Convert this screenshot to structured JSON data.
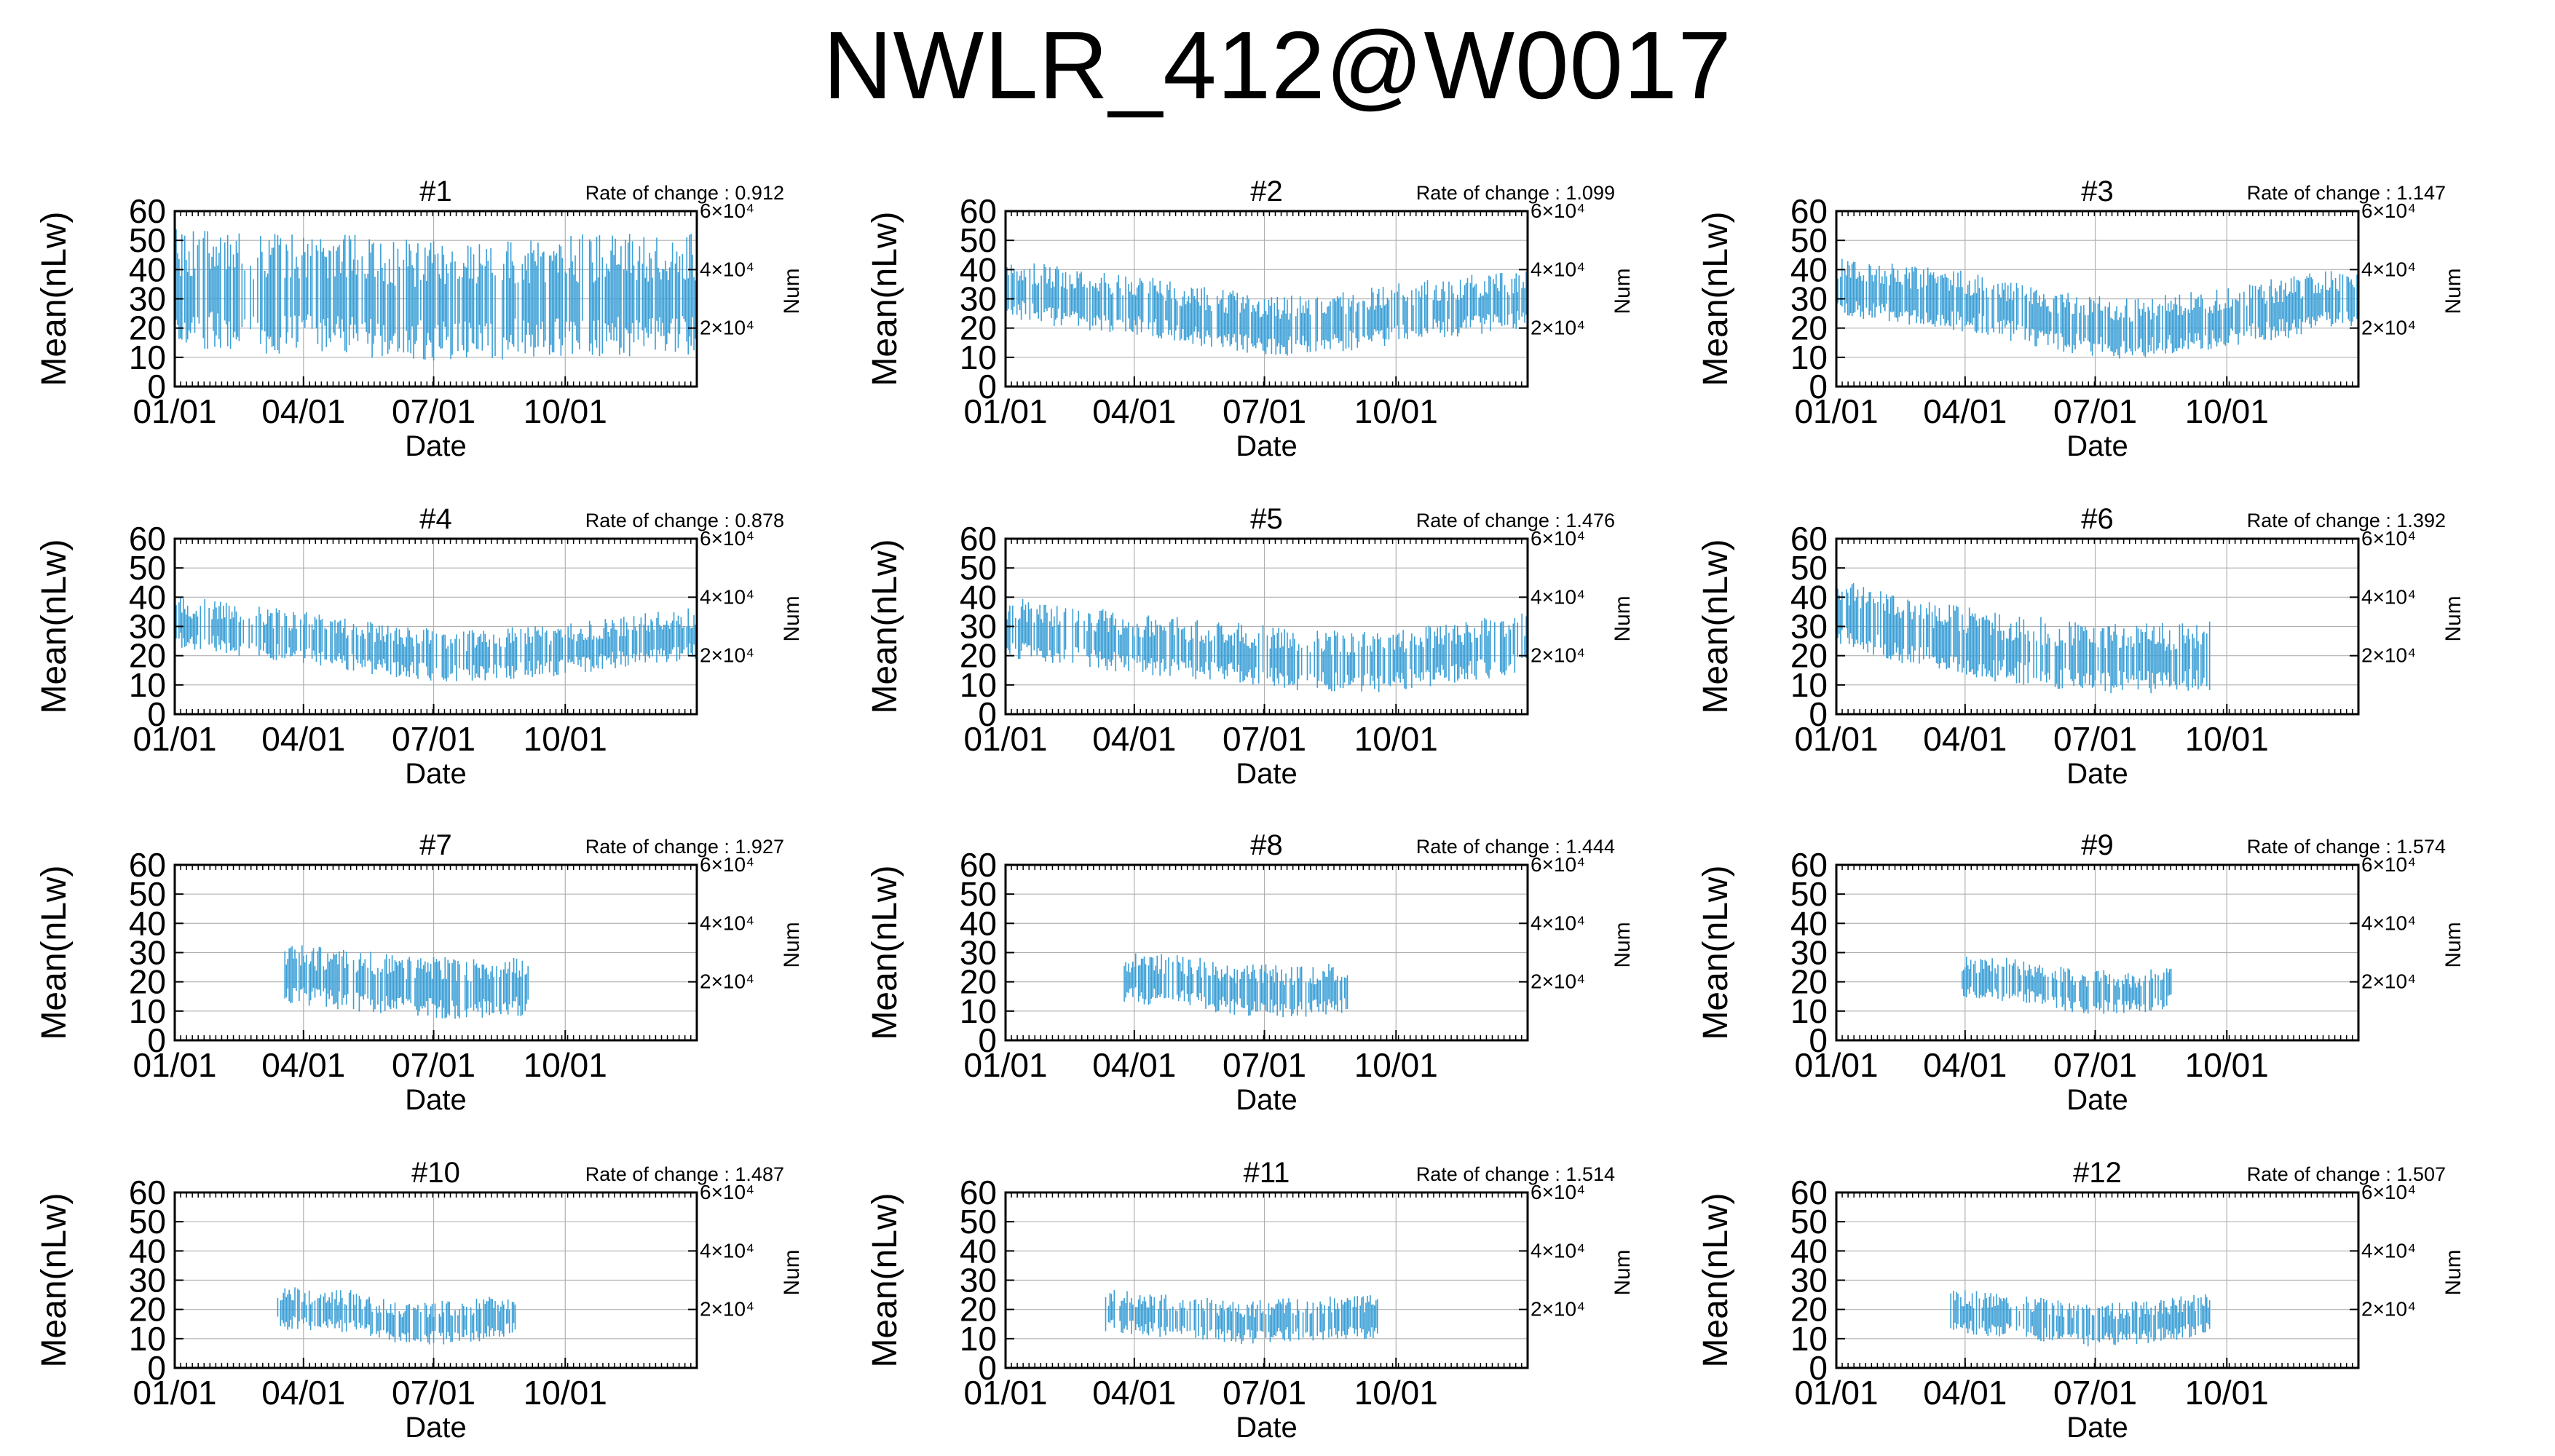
{
  "figure_title": "NWLR_412@W0017",
  "colors": {
    "series": "#3a9fd6",
    "grid": "#b0b0b0",
    "axis": "#000000"
  },
  "chart_data": [
    {
      "type": "line",
      "title": "#1",
      "annotation": "Rate of change : 0.912",
      "xlabel": "Date",
      "ylabel": "Mean(nLw)",
      "y2label": "Num",
      "ylim": [
        0,
        60
      ],
      "yticks": [
        "0",
        "10",
        "20",
        "30",
        "40",
        "50",
        "60"
      ],
      "y2ticks": [
        "2×10⁴",
        "4×10⁴",
        "6×10⁴"
      ],
      "y2lim": [
        0,
        60000
      ],
      "y2tick_values": [
        20000,
        40000,
        60000
      ],
      "xticks": [
        "01/01",
        "04/01",
        "07/01",
        "10/01"
      ],
      "xtick_days": [
        0,
        90,
        181,
        273
      ],
      "xlim_days": [
        0,
        365
      ],
      "grid": true,
      "series": [
        {
          "gaps": [],
          "base": [
            [
              0,
              32
            ],
            [
              60,
              31
            ],
            [
              120,
              30
            ],
            [
              180,
              28
            ],
            [
              240,
              29
            ],
            [
              300,
              30
            ],
            [
              365,
              30
            ]
          ],
          "spread": 14
        }
      ]
    },
    {
      "type": "line",
      "title": "#2",
      "annotation": "Rate of change : 1.099",
      "xlabel": "Date",
      "ylabel": "Mean(nLw)",
      "y2label": "Num",
      "ylim": [
        0,
        60
      ],
      "yticks": [
        "0",
        "10",
        "20",
        "30",
        "40",
        "50",
        "60"
      ],
      "y2ticks": [
        "2×10⁴",
        "4×10⁴",
        "6×10⁴"
      ],
      "y2lim": [
        0,
        60000
      ],
      "y2tick_values": [
        20000,
        40000,
        60000
      ],
      "xticks": [
        "01/01",
        "04/01",
        "07/01",
        "10/01"
      ],
      "xtick_days": [
        0,
        90,
        181,
        273
      ],
      "xlim_days": [
        0,
        365
      ],
      "grid": true,
      "series": [
        {
          "gaps": [],
          "base": [
            [
              0,
              33
            ],
            [
              40,
              30
            ],
            [
              100,
              27
            ],
            [
              150,
              22
            ],
            [
              200,
              20
            ],
            [
              260,
              23
            ],
            [
              300,
              26
            ],
            [
              365,
              29
            ]
          ],
          "spread": 7
        }
      ]
    },
    {
      "type": "line",
      "title": "#3",
      "annotation": "Rate of change : 1.147",
      "xlabel": "Date",
      "ylabel": "Mean(nLw)",
      "y2label": "Num",
      "ylim": [
        0,
        60
      ],
      "yticks": [
        "0",
        "10",
        "20",
        "30",
        "40",
        "50",
        "60"
      ],
      "y2ticks": [
        "2×10⁴",
        "4×10⁴",
        "6×10⁴"
      ],
      "y2lim": [
        0,
        60000
      ],
      "y2tick_values": [
        20000,
        40000,
        60000
      ],
      "xticks": [
        "01/01",
        "04/01",
        "07/01",
        "10/01"
      ],
      "xtick_days": [
        0,
        90,
        181,
        273
      ],
      "xlim_days": [
        0,
        365
      ],
      "grid": true,
      "series": [
        {
          "gaps": [],
          "base": [
            [
              0,
              34
            ],
            [
              40,
              31
            ],
            [
              100,
              28
            ],
            [
              150,
              22
            ],
            [
              200,
              19
            ],
            [
              260,
              22
            ],
            [
              310,
              26
            ],
            [
              365,
              30
            ]
          ],
          "spread": 7
        }
      ]
    },
    {
      "type": "line",
      "title": "#4",
      "annotation": "Rate of change : 0.878",
      "xlabel": "Date",
      "ylabel": "Mean(nLw)",
      "y2label": "Num",
      "ylim": [
        0,
        60
      ],
      "yticks": [
        "0",
        "10",
        "20",
        "30",
        "40",
        "50",
        "60"
      ],
      "y2ticks": [
        "2×10⁴",
        "4×10⁴",
        "6×10⁴"
      ],
      "y2lim": [
        0,
        60000
      ],
      "y2tick_values": [
        20000,
        40000,
        60000
      ],
      "xticks": [
        "01/01",
        "04/01",
        "07/01",
        "10/01"
      ],
      "xtick_days": [
        0,
        90,
        181,
        273
      ],
      "xlim_days": [
        0,
        365
      ],
      "grid": true,
      "series": [
        {
          "gaps": [],
          "base": [
            [
              0,
              31
            ],
            [
              50,
              28
            ],
            [
              100,
              25
            ],
            [
              150,
              21
            ],
            [
              200,
              19
            ],
            [
              260,
              21
            ],
            [
              310,
              24
            ],
            [
              365,
              27
            ]
          ],
          "spread": 6
        }
      ]
    },
    {
      "type": "line",
      "title": "#5",
      "annotation": "Rate of change : 1.476",
      "xlabel": "Date",
      "ylabel": "Mean(nLw)",
      "y2label": "Num",
      "ylim": [
        0,
        60
      ],
      "yticks": [
        "0",
        "10",
        "20",
        "30",
        "40",
        "50",
        "60"
      ],
      "y2ticks": [
        "2×10⁴",
        "4×10⁴",
        "6×10⁴"
      ],
      "y2lim": [
        0,
        60000
      ],
      "y2tick_values": [
        20000,
        40000,
        60000
      ],
      "xticks": [
        "01/01",
        "04/01",
        "07/01",
        "10/01"
      ],
      "xtick_days": [
        0,
        90,
        181,
        273
      ],
      "xlim_days": [
        0,
        365
      ],
      "grid": true,
      "series": [
        {
          "gaps": [],
          "base": [
            [
              0,
              29
            ],
            [
              50,
              26
            ],
            [
              100,
              23
            ],
            [
              150,
              21
            ],
            [
              200,
              18
            ],
            [
              260,
              17
            ],
            [
              310,
              20
            ],
            [
              365,
              24
            ]
          ],
          "spread": 7
        }
      ]
    },
    {
      "type": "line",
      "title": "#6",
      "annotation": "Rate of change : 1.392",
      "xlabel": "Date",
      "ylabel": "Mean(nLw)",
      "y2label": "Num",
      "ylim": [
        0,
        60
      ],
      "yticks": [
        "0",
        "10",
        "20",
        "30",
        "40",
        "50",
        "60"
      ],
      "y2ticks": [
        "2×10⁴",
        "4×10⁴",
        "6×10⁴"
      ],
      "y2lim": [
        0,
        60000
      ],
      "y2tick_values": [
        20000,
        40000,
        60000
      ],
      "xticks": [
        "01/01",
        "04/01",
        "07/01",
        "10/01"
      ],
      "xtick_days": [
        0,
        90,
        181,
        273
      ],
      "xlim_days": [
        0,
        365
      ],
      "grid": true,
      "series": [
        {
          "gaps": [
            [
              262,
              365
            ]
          ],
          "base": [
            [
              0,
              34
            ],
            [
              50,
              28
            ],
            [
              100,
              23
            ],
            [
              150,
              20
            ],
            [
              200,
              18
            ],
            [
              262,
              19
            ]
          ],
          "spread": 8
        }
      ]
    },
    {
      "type": "line",
      "title": "#7",
      "annotation": "Rate of change : 1.927",
      "xlabel": "Date",
      "ylabel": "Mean(nLw)",
      "y2label": "Num",
      "ylim": [
        0,
        60
      ],
      "yticks": [
        "0",
        "10",
        "20",
        "30",
        "40",
        "50",
        "60"
      ],
      "y2ticks": [
        "2×10⁴",
        "4×10⁴",
        "6×10⁴"
      ],
      "y2lim": [
        0,
        60000
      ],
      "y2tick_values": [
        20000,
        40000,
        60000
      ],
      "xticks": [
        "01/01",
        "04/01",
        "07/01",
        "10/01"
      ],
      "xtick_days": [
        0,
        90,
        181,
        273
      ],
      "xlim_days": [
        0,
        365
      ],
      "grid": true,
      "series": [
        {
          "gaps": [
            [
              0,
              77
            ],
            [
              248,
              365
            ]
          ],
          "base": [
            [
              77,
              22
            ],
            [
              120,
              20
            ],
            [
              160,
              18
            ],
            [
              200,
              17
            ],
            [
              248,
              18
            ]
          ],
          "spread": 7
        }
      ]
    },
    {
      "type": "line",
      "title": "#8",
      "annotation": "Rate of change : 1.444",
      "xlabel": "Date",
      "ylabel": "Mean(nLw)",
      "y2label": "Num",
      "ylim": [
        0,
        60
      ],
      "yticks": [
        "0",
        "10",
        "20",
        "30",
        "40",
        "50",
        "60"
      ],
      "y2ticks": [
        "2×10⁴",
        "4×10⁴",
        "6×10⁴"
      ],
      "y2lim": [
        0,
        60000
      ],
      "y2tick_values": [
        20000,
        40000,
        60000
      ],
      "xticks": [
        "01/01",
        "04/01",
        "07/01",
        "10/01"
      ],
      "xtick_days": [
        0,
        90,
        181,
        273
      ],
      "xlim_days": [
        0,
        365
      ],
      "grid": true,
      "series": [
        {
          "gaps": [
            [
              0,
              82
            ],
            [
              240,
              365
            ]
          ],
          "base": [
            [
              82,
              21
            ],
            [
              120,
              20
            ],
            [
              160,
              17
            ],
            [
              200,
              16
            ],
            [
              240,
              17
            ]
          ],
          "spread": 6
        }
      ]
    },
    {
      "type": "line",
      "title": "#9",
      "annotation": "Rate of change : 1.574",
      "xlabel": "Date",
      "ylabel": "Mean(nLw)",
      "y2label": "Num",
      "ylim": [
        0,
        60
      ],
      "yticks": [
        "0",
        "10",
        "20",
        "30",
        "40",
        "50",
        "60"
      ],
      "y2ticks": [
        "2×10⁴",
        "4×10⁴",
        "6×10⁴"
      ],
      "y2lim": [
        0,
        60000
      ],
      "y2tick_values": [
        20000,
        40000,
        60000
      ],
      "xticks": [
        "01/01",
        "04/01",
        "07/01",
        "10/01"
      ],
      "xtick_days": [
        0,
        90,
        181,
        273
      ],
      "xlim_days": [
        0,
        365
      ],
      "grid": true,
      "series": [
        {
          "gaps": [
            [
              0,
              88
            ],
            [
              235,
              365
            ]
          ],
          "base": [
            [
              88,
              21
            ],
            [
              130,
              20
            ],
            [
              170,
              16
            ],
            [
              210,
              16
            ],
            [
              235,
              18
            ]
          ],
          "spread": 5
        }
      ]
    },
    {
      "type": "line",
      "title": "#10",
      "annotation": "Rate of change : 1.487",
      "xlabel": "Date",
      "ylabel": "Mean(nLw)",
      "y2label": "Num",
      "ylim": [
        0,
        60
      ],
      "yticks": [
        "0",
        "10",
        "20",
        "30",
        "40",
        "50",
        "60"
      ],
      "y2ticks": [
        "2×10⁴",
        "4×10⁴",
        "6×10⁴"
      ],
      "y2lim": [
        0,
        60000
      ],
      "y2tick_values": [
        20000,
        40000,
        60000
      ],
      "xticks": [
        "01/01",
        "04/01",
        "07/01",
        "10/01"
      ],
      "xtick_days": [
        0,
        90,
        181,
        273
      ],
      "xlim_days": [
        0,
        365
      ],
      "grid": true,
      "series": [
        {
          "gaps": [
            [
              0,
              72
            ],
            [
              240,
              365
            ]
          ],
          "base": [
            [
              72,
              20
            ],
            [
              120,
              19
            ],
            [
              160,
              15
            ],
            [
              200,
              15
            ],
            [
              240,
              18
            ]
          ],
          "spread": 5
        }
      ]
    },
    {
      "type": "line",
      "title": "#11",
      "annotation": "Rate of change : 1.514",
      "xlabel": "Date",
      "ylabel": "Mean(nLw)",
      "y2label": "Num",
      "ylim": [
        0,
        60
      ],
      "yticks": [
        "0",
        "10",
        "20",
        "30",
        "40",
        "50",
        "60"
      ],
      "y2ticks": [
        "2×10⁴",
        "4×10⁴",
        "6×10⁴"
      ],
      "y2lim": [
        0,
        60000
      ],
      "y2tick_values": [
        20000,
        40000,
        60000
      ],
      "xticks": [
        "01/01",
        "04/01",
        "07/01",
        "10/01"
      ],
      "xtick_days": [
        0,
        90,
        181,
        273
      ],
      "xlim_days": [
        0,
        365
      ],
      "grid": true,
      "series": [
        {
          "gaps": [
            [
              0,
              70
            ],
            [
              262,
              365
            ]
          ],
          "base": [
            [
              70,
              19
            ],
            [
              120,
              17
            ],
            [
              160,
              15
            ],
            [
              200,
              16
            ],
            [
              262,
              17
            ]
          ],
          "spread": 5
        }
      ]
    },
    {
      "type": "line",
      "title": "#12",
      "annotation": "Rate of change : 1.507",
      "xlabel": "Date",
      "ylabel": "Mean(nLw)",
      "y2label": "Num",
      "ylim": [
        0,
        60
      ],
      "yticks": [
        "0",
        "10",
        "20",
        "30",
        "40",
        "50",
        "60"
      ],
      "y2ticks": [
        "2×10⁴",
        "4×10⁴",
        "6×10⁴"
      ],
      "y2lim": [
        0,
        60000
      ],
      "y2tick_values": [
        20000,
        40000,
        60000
      ],
      "xticks": [
        "01/01",
        "04/01",
        "07/01",
        "10/01"
      ],
      "xtick_days": [
        0,
        90,
        181,
        273
      ],
      "xlim_days": [
        0,
        365
      ],
      "grid": true,
      "series": [
        {
          "gaps": [
            [
              0,
              80
            ],
            [
              262,
              365
            ]
          ],
          "base": [
            [
              80,
              19
            ],
            [
              130,
              17
            ],
            [
              170,
              14
            ],
            [
              210,
              15
            ],
            [
              262,
              18
            ]
          ],
          "spread": 5
        }
      ]
    }
  ]
}
